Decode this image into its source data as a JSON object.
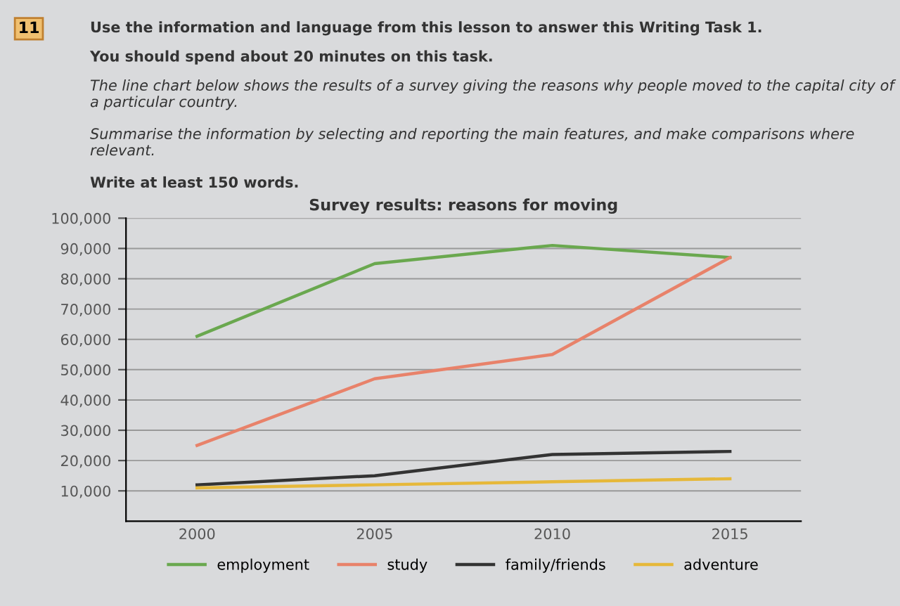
{
  "chart_data": {
    "type": "line",
    "title": "Survey results: reasons for moving",
    "annotations": [
      "11",
      "Use the information and language from this lesson to answer this Writing Task 1.",
      "You should spend about 20 minutes on this task.",
      "The line chart below shows the results of a survey giving the reasons why people moved to the capital city of a particular country.",
      "Summarise the information by selecting and reporting the main features, and make comparisons where relevant.",
      "Write at least 150 words."
    ],
    "x": [
      2000,
      2005,
      2010,
      2015
    ],
    "series": [
      {
        "name": "employment",
        "color": "#6aa84f",
        "values": [
          61000,
          85000,
          91000,
          87000
        ]
      },
      {
        "name": "study",
        "color": "#e8826a",
        "values": [
          25000,
          47000,
          55000,
          87000
        ]
      },
      {
        "name": "family/friends",
        "color": "#333333",
        "values": [
          12000,
          15000,
          22000,
          23000
        ]
      },
      {
        "name": "adventure",
        "color": "#e6b83a",
        "values": [
          11000,
          12000,
          13000,
          14000
        ]
      }
    ],
    "xlim": [
      1998,
      2017
    ],
    "xticks": [
      2000,
      2005,
      2010,
      2015
    ],
    "ylim": [
      0,
      100000
    ],
    "yticks": [
      {
        "value": 10000,
        "label": "10,000"
      },
      {
        "value": 20000,
        "label": "20,000"
      },
      {
        "value": 30000,
        "label": "30,000"
      },
      {
        "value": 40000,
        "label": "40,000"
      },
      {
        "value": 50000,
        "label": "50,000"
      },
      {
        "value": 60000,
        "label": "60,000"
      },
      {
        "value": 70000,
        "label": "70,000"
      },
      {
        "value": 80000,
        "label": "80,000"
      },
      {
        "value": 90000,
        "label": "90,000"
      },
      {
        "value": 100000,
        "label": "100,000"
      }
    ],
    "grid": "y",
    "legend": "bottom",
    "line_style": "solid",
    "marker": "none"
  }
}
